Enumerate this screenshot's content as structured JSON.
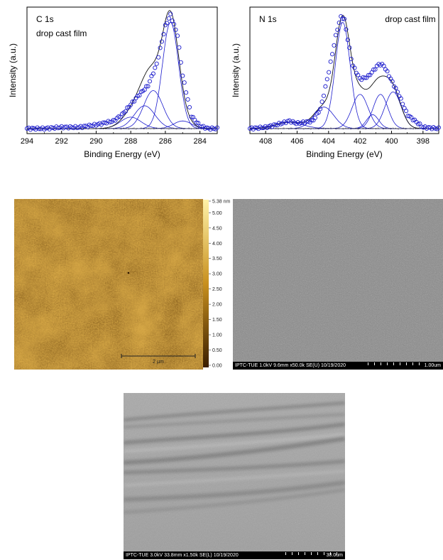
{
  "chart_data": [
    {
      "type": "line",
      "panel": "C 1s",
      "annotation": "drop cast film",
      "xlabel": "Binding Energy (eV)",
      "ylabel": "Intensity (a.u.)",
      "xlim": [
        294,
        283
      ],
      "x_reversed": true,
      "x_ticks": [
        294,
        292,
        290,
        288,
        286,
        284
      ],
      "baseline": 0.04,
      "components": [
        {
          "center": 288.0,
          "fwhm": 1.4,
          "height": 0.09
        },
        {
          "center": 287.2,
          "fwhm": 1.4,
          "height": 0.18
        },
        {
          "center": 286.7,
          "fwhm": 1.3,
          "height": 0.3
        },
        {
          "center": 285.7,
          "fwhm": 1.1,
          "height": 0.84
        },
        {
          "center": 285.0,
          "fwhm": 1.2,
          "height": 0.06
        }
      ],
      "series": [
        {
          "name": "",
          "x": [
            294,
            293,
            292,
            291,
            290,
            289,
            288.5,
            288,
            287.5,
            287,
            286.5,
            286,
            285.7,
            285.3,
            285,
            284.5,
            284,
            283.5,
            283
          ],
          "y": [
            0.04,
            0.04,
            0.05,
            0.05,
            0.07,
            0.1,
            0.15,
            0.23,
            0.31,
            0.38,
            0.55,
            0.85,
            0.94,
            0.78,
            0.46,
            0.14,
            0.06,
            0.04,
            0.04
          ]
        }
      ]
    },
    {
      "type": "line",
      "panel": "N 1s",
      "annotation": "drop cast film",
      "xlabel": "Binding Energy (eV)",
      "ylabel": "Intensity (a.u.)",
      "xlim": [
        409,
        397
      ],
      "x_reversed": true,
      "x_ticks": [
        408,
        406,
        404,
        402,
        400,
        398
      ],
      "baseline": 0.04,
      "components": [
        {
          "center": 406.5,
          "fwhm": 2.0,
          "height": 0.05
        },
        {
          "center": 404.3,
          "fwhm": 1.5,
          "height": 0.17
        },
        {
          "center": 403.1,
          "fwhm": 1.1,
          "height": 0.84
        },
        {
          "center": 402.0,
          "fwhm": 1.2,
          "height": 0.27
        },
        {
          "center": 401.2,
          "fwhm": 0.9,
          "height": 0.11
        },
        {
          "center": 400.7,
          "fwhm": 1.1,
          "height": 0.27
        },
        {
          "center": 399.9,
          "fwhm": 1.2,
          "height": 0.29
        }
      ],
      "series": [
        {
          "name": "",
          "x": [
            409,
            408,
            407,
            406.5,
            406,
            405,
            404.5,
            404,
            403.5,
            403.2,
            403,
            402.5,
            402,
            401.5,
            401,
            400.8,
            400.5,
            400,
            399.5,
            399,
            398,
            397
          ],
          "y": [
            0.04,
            0.05,
            0.08,
            0.1,
            0.08,
            0.1,
            0.2,
            0.48,
            0.8,
            0.93,
            0.9,
            0.55,
            0.43,
            0.45,
            0.52,
            0.55,
            0.54,
            0.42,
            0.3,
            0.15,
            0.05,
            0.04
          ]
        }
      ]
    }
  ],
  "afm": {
    "colorbar_ticks": [
      "5.38 nm",
      "5.00",
      "4.50",
      "4.00",
      "3.50",
      "3.00",
      "2.50",
      "2.00",
      "1.50",
      "1.00",
      "0.50",
      "0.00"
    ],
    "scalebar_label": "2 µm",
    "colors": {
      "high": "#fff2a8",
      "mid": "#c8901e",
      "low": "#3a1e00"
    }
  },
  "sem_top": {
    "info": "IPTC-TUE 1.0kV 9.6mm x50.0k SE(U) 10/19/2020",
    "scale": "1.00um"
  },
  "sem_bottom": {
    "info": "IPTC-TUE 3.0kV 33.8mm x1.50k SE(L) 10/19/2020",
    "scale": "30.0um"
  }
}
